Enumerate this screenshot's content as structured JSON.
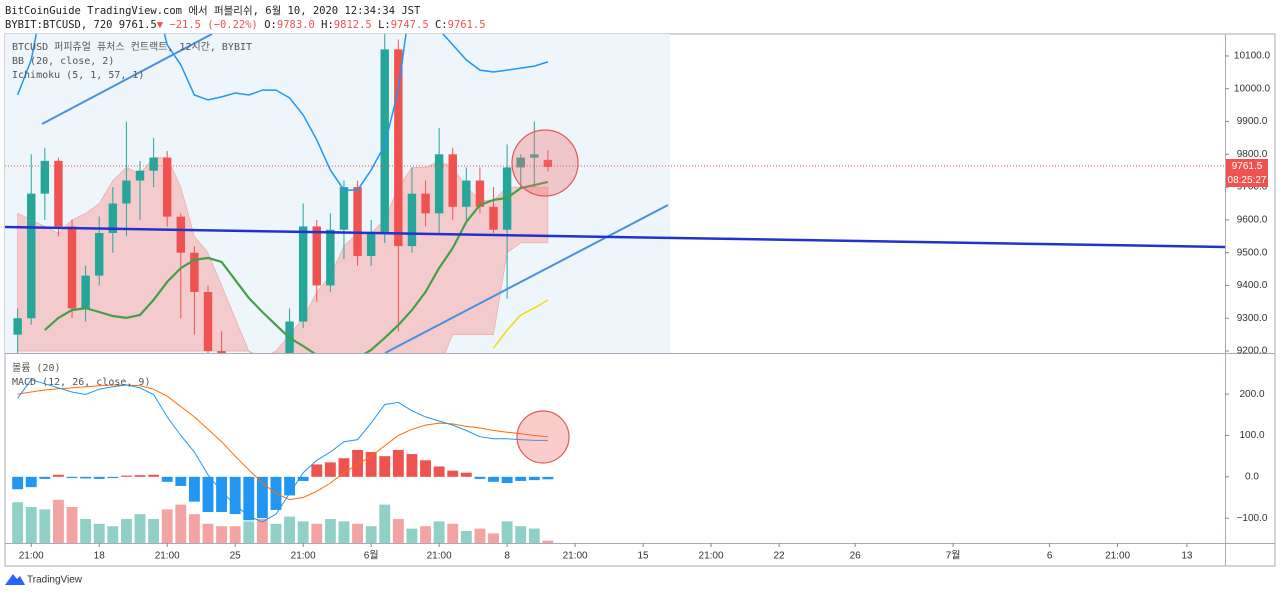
{
  "header": {
    "publisher": "BitCoinGuide TradingView.com 에서 퍼블리쉬, 6월 10, 2020 12:34:34 JST",
    "symbol": "BYBIT:BTCUSD, 720",
    "last": "9761.5",
    "change": "▼ −21.5 (−0.22%)",
    "ohlc": [
      {
        "label": "O:",
        "value": "9783.0"
      },
      {
        "label": "H:",
        "value": "9812.5"
      },
      {
        "label": "L:",
        "value": "9747.5"
      },
      {
        "label": "C:",
        "value": "9761.5"
      }
    ]
  },
  "chart_data": [
    {
      "type": "candlestick",
      "title": "BTCUSD 퍼피츄얼 퓨처스 컨트랙트, 12시간, BYBIT",
      "indicators": [
        "BB (20, close, 2)",
        "Ichimoku (5, 1, 57, 1)"
      ],
      "x": [
        0,
        1,
        2,
        3,
        4,
        5,
        6,
        7,
        8,
        9,
        10,
        11,
        12,
        13,
        14,
        15,
        16,
        17,
        18,
        19,
        20,
        21,
        22,
        23,
        24,
        25,
        26,
        27,
        28,
        29,
        30,
        31,
        32,
        33,
        34,
        35,
        36,
        37,
        38,
        39
      ],
      "open": [
        9250,
        9300,
        9680,
        9780,
        9580,
        9330,
        9430,
        9560,
        9650,
        9720,
        9750,
        9790,
        9610,
        9500,
        9380,
        9200,
        9150,
        9100,
        9120,
        9080,
        9150,
        9290,
        9580,
        9400,
        9570,
        9700,
        9490,
        9560,
        10120,
        9520,
        9680,
        9620,
        9800,
        9640,
        9720,
        9640,
        9570,
        9760,
        9790,
        9783
      ],
      "high": [
        9330,
        9800,
        9820,
        9790,
        9600,
        9460,
        9610,
        9700,
        9900,
        9780,
        9850,
        9810,
        9620,
        9520,
        9400,
        9260,
        9190,
        9180,
        9150,
        9180,
        9330,
        9650,
        9600,
        9620,
        9720,
        9720,
        9600,
        10200,
        10150,
        9760,
        9720,
        9880,
        9820,
        9760,
        9760,
        9700,
        9830,
        9800,
        9900,
        9812.5
      ],
      "low": [
        9180,
        9280,
        9600,
        9550,
        9300,
        9290,
        9400,
        9500,
        9550,
        9600,
        9700,
        9580,
        9300,
        9250,
        9150,
        9100,
        9050,
        9060,
        9040,
        9060,
        9120,
        9270,
        9350,
        9380,
        9480,
        9460,
        9460,
        9530,
        9260,
        9500,
        9580,
        9560,
        9600,
        9600,
        9620,
        9560,
        9360,
        9700,
        9700,
        9747.5
      ],
      "close": [
        9300,
        9680,
        9780,
        9580,
        9330,
        9430,
        9560,
        9650,
        9720,
        9750,
        9790,
        9610,
        9500,
        9380,
        9200,
        9150,
        9100,
        9120,
        9080,
        9150,
        9290,
        9580,
        9400,
        9570,
        9700,
        9490,
        9560,
        10120,
        9520,
        9680,
        9620,
        9800,
        9640,
        9720,
        9640,
        9570,
        9760,
        9790,
        9800,
        9761.5
      ],
      "up_color": "#26a69a",
      "down_color": "#ef5350",
      "overlays": [
        {
          "color": "#2196f3",
          "values": [
            9981,
            10088,
            10300,
            10300,
            10300,
            10300,
            10300,
            10300,
            10300,
            10300,
            10300,
            10134,
            10073,
            9981,
            9966,
            9975,
            9987,
            9981,
            9996,
            9996,
            9972,
            9920,
            9844,
            9752,
            9691,
            9691,
            9752,
            9828,
            9996,
            10300,
            10300,
            10180,
            10134,
            10088,
            10057,
            10051,
            10057,
            10063,
            10069,
            10082
          ]
        },
        {
          "color": "#43a047",
          "values": [
            null,
            null,
            9264,
            9301,
            9325,
            9331,
            9319,
            9307,
            9301,
            9310,
            9356,
            9411,
            9453,
            9478,
            9484,
            9472,
            9417,
            9362,
            9319,
            9279,
            9240,
            9215,
            9188,
            9173,
            9173,
            9179,
            9203,
            9240,
            9279,
            9325,
            9380,
            9453,
            9514,
            9594,
            9645,
            9661,
            9667,
            9697,
            9706,
            9716
          ]
        },
        {
          "color": "#f5d90a",
          "values": [
            null,
            null,
            null,
            null,
            null,
            null,
            null,
            null,
            null,
            null,
            null,
            null,
            null,
            null,
            null,
            null,
            null,
            null,
            null,
            null,
            null,
            null,
            null,
            null,
            null,
            null,
            null,
            null,
            null,
            null,
            null,
            null,
            null,
            null,
            null,
            9209,
            9264,
            9310,
            9331,
            9356
          ]
        }
      ],
      "cloud": {
        "color": "#f5b9b9",
        "top": [
          9620,
          9600,
          9580,
          9560,
          9600,
          9620,
          9650,
          9720,
          9760,
          9740,
          9790,
          9790,
          9700,
          9550,
          9500,
          9400,
          9300,
          9200,
          9180,
          9200,
          9250,
          9300,
          9380,
          9430,
          9520,
          9560,
          9560,
          9600,
          9700,
          9760,
          9760,
          9780,
          9760,
          9700,
          9660,
          9660,
          9700,
          9700,
          9700,
          9700
        ],
        "bottom": [
          9200,
          9200,
          9200,
          9200,
          9200,
          9200,
          9200,
          9200,
          9200,
          9200,
          9200,
          9200,
          9200,
          9200,
          9200,
          9200,
          9200,
          9200,
          9150,
          9150,
          9150,
          9150,
          9150,
          9150,
          9150,
          9150,
          9150,
          9150,
          9150,
          9150,
          9150,
          9150,
          9250,
          9250,
          9250,
          9250,
          9500,
          9530,
          9530,
          9530
        ]
      },
      "xlim": [
        -0.93,
        88.8
      ],
      "ylim": [
        9194,
        10167
      ],
      "yticks": [
        {
          "value": 9200,
          "label": "9200.0"
        },
        {
          "value": 9300,
          "label": "9300.0"
        },
        {
          "value": 9400,
          "label": "9400.0"
        },
        {
          "value": 9500,
          "label": "9500.0"
        },
        {
          "value": 9600,
          "label": "9600.0"
        },
        {
          "value": 9700,
          "label": "9700.0"
        },
        {
          "value": 9800,
          "label": "9800.0"
        },
        {
          "value": 9900,
          "label": "9900.0"
        },
        {
          "value": 10000,
          "label": "10000.0"
        },
        {
          "value": 10100,
          "label": "10100.0"
        }
      ]
    },
    {
      "type": "macd",
      "indicators": [
        "볼륨 (20)",
        "MACD (12, 26, close, 9)"
      ],
      "x": [
        0,
        1,
        2,
        3,
        4,
        5,
        6,
        7,
        8,
        9,
        10,
        11,
        12,
        13,
        14,
        15,
        16,
        17,
        18,
        19,
        20,
        21,
        22,
        23,
        24,
        25,
        26,
        27,
        28,
        29,
        30,
        31,
        32,
        33,
        34,
        35,
        36,
        37,
        38,
        39
      ],
      "histogram": {
        "up_color": "#ef5350",
        "down_color": "#2196f3",
        "values": [
          -30,
          -25,
          -5,
          5,
          -3,
          -4,
          -5,
          -3,
          3,
          4,
          5,
          -12,
          -22,
          -60,
          -85,
          -85,
          -90,
          -105,
          -100,
          -80,
          -45,
          -10,
          30,
          35,
          45,
          65,
          60,
          50,
          65,
          55,
          40,
          25,
          15,
          10,
          -5,
          -12,
          -15,
          -10,
          -8,
          -6
        ]
      },
      "macd": {
        "color": "#2196f3",
        "values": [
          190,
          235,
          225,
          215,
          205,
          199,
          212,
          218,
          222,
          215,
          199,
          145,
          100,
          60,
          5,
          -35,
          -68,
          -95,
          -109,
          -90,
          -40,
          10,
          40,
          60,
          85,
          90,
          130,
          175,
          180,
          160,
          145,
          135,
          125,
          112,
          97,
          92,
          92,
          90,
          88,
          88
        ]
      },
      "signal": {
        "color": "#ff6d00",
        "values": [
          200,
          205,
          210,
          213,
          215,
          218,
          220,
          222,
          222,
          220,
          212,
          195,
          170,
          145,
          115,
          85,
          50,
          17,
          -15,
          -40,
          -55,
          -50,
          -35,
          -15,
          10,
          30,
          50,
          75,
          100,
          115,
          125,
          130,
          128,
          122,
          118,
          112,
          108,
          104,
          100,
          97
        ]
      },
      "volume": {
        "up_color": "#8fd1c6",
        "down_color": "#f4a3a3",
        "vlim": [
          0,
          100
        ],
        "values": [
          85,
          75,
          70,
          90,
          75,
          50,
          40,
          35,
          50,
          60,
          50,
          70,
          80,
          60,
          40,
          35,
          35,
          45,
          50,
          40,
          55,
          45,
          40,
          50,
          45,
          40,
          35,
          80,
          50,
          30,
          35,
          45,
          40,
          25,
          30,
          20,
          45,
          35,
          30,
          5
        ]
      },
      "xlim": [
        -0.93,
        88.8
      ],
      "ylim": [
        -160,
        297
      ],
      "yticks": [
        {
          "value": -100,
          "label": "−100.0"
        },
        {
          "value": 0,
          "label": "0.0"
        },
        {
          "value": 100,
          "label": "100.0"
        },
        {
          "value": 200,
          "label": "200.0"
        }
      ],
      "xticks": [
        {
          "value": 1,
          "label": "21:00"
        },
        {
          "value": 6,
          "label": "18"
        },
        {
          "value": 11,
          "label": "21:00"
        },
        {
          "value": 16,
          "label": "25"
        },
        {
          "value": 21,
          "label": "21:00"
        },
        {
          "value": 26,
          "label": "6월"
        },
        {
          "value": 31,
          "label": "21:00"
        },
        {
          "value": 36,
          "label": "8"
        },
        {
          "value": 41,
          "label": "21:00"
        },
        {
          "value": 46,
          "label": "15"
        },
        {
          "value": 51,
          "label": "21:00"
        },
        {
          "value": 56,
          "label": "22"
        },
        {
          "value": 61.6,
          "label": "26"
        },
        {
          "value": 68.8,
          "label": "7월"
        },
        {
          "value": 75.9,
          "label": "6"
        },
        {
          "value": 80.9,
          "label": "21:00"
        },
        {
          "value": 86,
          "label": "13"
        }
      ]
    }
  ],
  "price_label": "9761.5",
  "countdown": "08:25:27",
  "logo": "TradingView"
}
